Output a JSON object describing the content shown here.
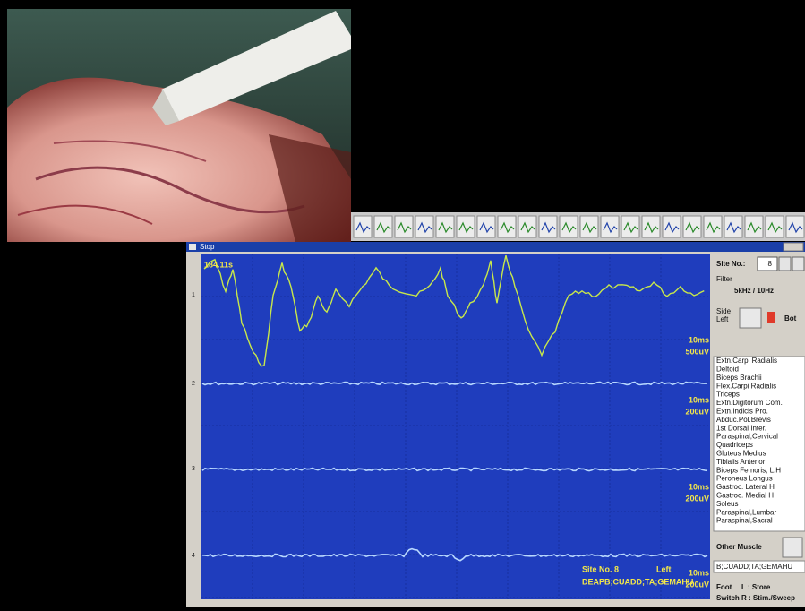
{
  "window": {
    "title": "Stop"
  },
  "plot": {
    "time": "184.11s",
    "channels": [
      {
        "label": "1",
        "scale_time": "10ms",
        "scale_amp": "500uV"
      },
      {
        "label": "2",
        "scale_time": "10ms",
        "scale_amp": "200uV"
      },
      {
        "label": "3",
        "scale_time": "10ms",
        "scale_amp": "200uV"
      },
      {
        "label": "4",
        "scale_time": "10ms",
        "scale_amp": "200uV"
      }
    ],
    "status": {
      "site": "Site No. 8",
      "side": "Left",
      "muscles": "DEAPB;CUADD;TA;GEMAHU"
    }
  },
  "panel": {
    "site_label": "Site No.:",
    "site_value": "8",
    "filter_label": "Filter",
    "filter_value": "5kHz / 10Hz",
    "side_label": "Side",
    "side_value": "Left",
    "side_button": "Bot",
    "muscles": [
      "Extn.Carpi Radialis",
      "Deltoid",
      "Biceps Brachii",
      "Flex.Carpi Radialis",
      "Triceps",
      "Extn.Digitorum Com.",
      "Extn.Indicis Pro.",
      "Abduc.Pol.Brevis",
      "1st Dorsal Inter.",
      "Paraspinal,Cervical",
      "Quadriceps",
      "Gluteus Medius",
      "Tibialis Anterior",
      "Biceps Femoris, L.H",
      "Peroneus Longus",
      "Gastroc. Lateral H",
      "Gastroc. Medial H",
      "Soleus",
      "Paraspinal,Lumbar",
      "Paraspinal,Sacral"
    ],
    "other_muscle": "Other Muscle",
    "selection": "B;CUADD;TA;GEMAHU",
    "foot_label": "Foot",
    "foot_value": "L : Store",
    "switch_label": "Switch",
    "switch_value": "R : Stim./Sweep"
  }
}
